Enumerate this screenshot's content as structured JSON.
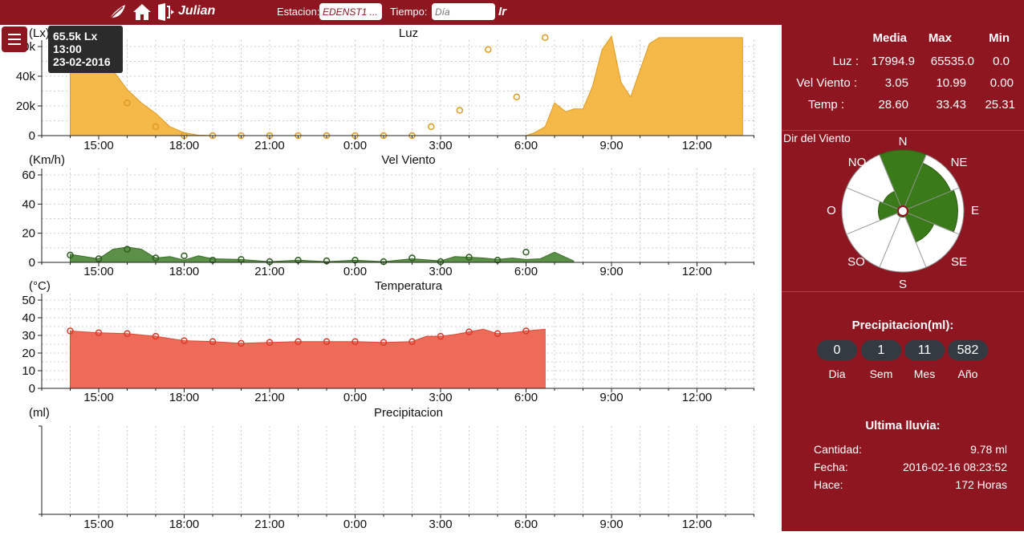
{
  "topbar": {
    "user": "Julian",
    "estacion_label": "Estacion:",
    "estacion_value": "EDENST1 ...",
    "tiempo_label": "Tiempo:",
    "tiempo_placeholder": "Día",
    "go_label": "Ir",
    "icons": [
      "leaf-icon",
      "home-icon",
      "logout-icon"
    ]
  },
  "menu": {
    "icon": "hamburger-icon"
  },
  "tooltip": {
    "value": "65.5k Lx",
    "time": "13:00",
    "date": "23-02-2016"
  },
  "colors": {
    "brand": "#8e1620",
    "luz": "#f5b94a",
    "viento": "#4e8a3a",
    "temp": "#ee6b5a"
  },
  "chart_data": [
    {
      "type": "area",
      "title": "Luz",
      "ylabel": "(Lx)",
      "ylim": [
        0,
        70000
      ],
      "yticks": [
        "0",
        "20k",
        "40k",
        "60k"
      ],
      "xticks": [
        "15:00",
        "18:00",
        "21:00",
        "0:00",
        "3:00",
        "6:00",
        "9:00",
        "12:00"
      ],
      "x": [
        -1,
        -0.67,
        -0.33,
        0,
        0.5,
        1,
        1.5,
        2,
        2.5,
        3,
        3.5,
        4,
        5,
        6,
        7,
        8,
        9,
        10,
        11,
        12,
        13,
        14,
        15,
        15.3,
        15.67,
        16,
        16.4,
        16.67,
        17,
        17.33,
        17.67,
        18,
        18.33,
        18.67,
        19,
        19.33,
        19.67,
        20,
        20.33,
        20.67,
        21,
        21.33,
        21.67,
        22,
        22.33,
        22.6
      ],
      "values": [
        65535,
        57000,
        46000,
        48000,
        44000,
        31000,
        22000,
        15000,
        6000,
        2000,
        300,
        0,
        0,
        0,
        0,
        0,
        0,
        0,
        0,
        0,
        0,
        0,
        0,
        2000,
        6000,
        22000,
        16000,
        18000,
        18000,
        33000,
        58000,
        67000,
        36000,
        26000,
        44000,
        62000,
        66000,
        66000,
        66000,
        66000,
        66000,
        66000,
        66000,
        66000,
        66000,
        66000
      ],
      "points": [
        [
          -1,
          65535
        ],
        [
          0,
          48000
        ],
        [
          1,
          22000
        ],
        [
          2,
          6000
        ],
        [
          3,
          0
        ],
        [
          4,
          0
        ],
        [
          5,
          0
        ],
        [
          6,
          0
        ],
        [
          7,
          0
        ],
        [
          8,
          0
        ],
        [
          9,
          0
        ],
        [
          10,
          0
        ],
        [
          11,
          0
        ],
        [
          11.67,
          6000
        ],
        [
          12.67,
          17000
        ],
        [
          13.67,
          58000
        ],
        [
          14.67,
          26000
        ],
        [
          15.67,
          66000
        ]
      ]
    },
    {
      "type": "area",
      "title": "Vel Viento",
      "ylabel": "(Km/h)",
      "ylim": [
        0,
        70
      ],
      "yticks": [
        "0",
        "20",
        "40",
        "60"
      ],
      "xticks": [
        "15:00",
        "18:00",
        "21:00",
        "0:00",
        "3:00",
        "6:00",
        "9:00",
        "12:00"
      ],
      "x": [
        -1,
        0,
        0.5,
        1,
        1.5,
        2,
        2.5,
        3,
        3.5,
        4,
        5,
        6,
        7,
        8,
        9,
        10,
        11,
        12,
        12.5,
        13,
        13.5,
        14,
        14.5,
        15,
        15.5,
        16,
        16.67
      ],
      "values": [
        5.5,
        2.5,
        9,
        10.5,
        9,
        3,
        4,
        1.5,
        4.5,
        2.5,
        2,
        0.5,
        1.5,
        0.5,
        1.5,
        0.5,
        2.5,
        1,
        4,
        3.5,
        3,
        2,
        3,
        2,
        2.5,
        7,
        1
      ],
      "points": [
        [
          -1,
          5
        ],
        [
          0,
          2.5
        ],
        [
          1,
          9
        ],
        [
          2,
          3
        ],
        [
          3,
          4.5
        ],
        [
          4,
          1.5
        ],
        [
          5,
          2
        ],
        [
          6,
          0.5
        ],
        [
          7,
          1.5
        ],
        [
          8,
          1
        ],
        [
          9,
          1.5
        ],
        [
          10,
          0.5
        ],
        [
          11,
          3
        ],
        [
          12,
          0.5
        ],
        [
          13,
          3.5
        ],
        [
          14,
          1.5
        ],
        [
          15,
          7
        ]
      ]
    },
    {
      "type": "area",
      "title": "Temperatura",
      "ylabel": "(°C)",
      "ylim": [
        0,
        50
      ],
      "yticks": [
        "0",
        "10",
        "20",
        "30",
        "40",
        "50"
      ],
      "xticks": [
        "15:00",
        "18:00",
        "21:00",
        "0:00",
        "3:00",
        "6:00",
        "9:00",
        "12:00"
      ],
      "x": [
        -1,
        0,
        1,
        2,
        3,
        4,
        5,
        6,
        7,
        8,
        9,
        10,
        11,
        11.5,
        12,
        12.5,
        13,
        13.5,
        14,
        14.5,
        15,
        15.67
      ],
      "values": [
        32.5,
        31.5,
        31,
        29.5,
        27,
        26.5,
        25.5,
        26,
        26.5,
        26.5,
        26.5,
        26,
        26.5,
        29.5,
        29.5,
        30.5,
        32,
        33.5,
        31,
        31.5,
        32.5,
        33.5
      ],
      "points": [
        [
          -1,
          32.5
        ],
        [
          0,
          31.5
        ],
        [
          1,
          31
        ],
        [
          2,
          29.5
        ],
        [
          3,
          27
        ],
        [
          4,
          26.5
        ],
        [
          5,
          25.5
        ],
        [
          6,
          26
        ],
        [
          7,
          26.5
        ],
        [
          8,
          26.5
        ],
        [
          9,
          26.5
        ],
        [
          10,
          26
        ],
        [
          11,
          26.5
        ],
        [
          12,
          29.5
        ],
        [
          13,
          32
        ],
        [
          14,
          31
        ],
        [
          15,
          32.5
        ]
      ]
    },
    {
      "type": "bar",
      "title": "Precipitacion",
      "ylabel": "(ml)",
      "xticks": [
        "15:00",
        "18:00",
        "21:00",
        "0:00",
        "3:00",
        "6:00",
        "9:00",
        "12:00"
      ],
      "values": []
    }
  ],
  "stats": {
    "headers": [
      "Media",
      "Max",
      "Min"
    ],
    "rows": [
      {
        "label": "Luz :",
        "media": "17994.9",
        "max": "65535.0",
        "min": "0.0"
      },
      {
        "label": "Vel Viento :",
        "media": "3.05",
        "max": "10.99",
        "min": "0.00"
      },
      {
        "label": "Temp :",
        "media": "28.60",
        "max": "33.43",
        "min": "25.31"
      }
    ]
  },
  "wind_rose": {
    "title": "Dir del Viento",
    "labels": [
      "N",
      "NE",
      "E",
      "SE",
      "S",
      "SO",
      "O",
      "NO"
    ],
    "values": [
      1.0,
      0.85,
      0.9,
      0.55,
      0.1,
      0.1,
      0.4,
      0.35
    ]
  },
  "precip": {
    "title": "Precipitacion(ml):",
    "values": [
      "0",
      "1",
      "11",
      "582"
    ],
    "labels": [
      "Dia",
      "Sem",
      "Mes",
      "Año"
    ]
  },
  "last_rain": {
    "title": "Ultima lluvia:",
    "cantidad_label": "Cantidad:",
    "cantidad": "9.78 ml",
    "fecha_label": "Fecha:",
    "fecha": "2016-02-16 08:23:52",
    "hace_label": "Hace:",
    "hace": "172 Horas"
  }
}
